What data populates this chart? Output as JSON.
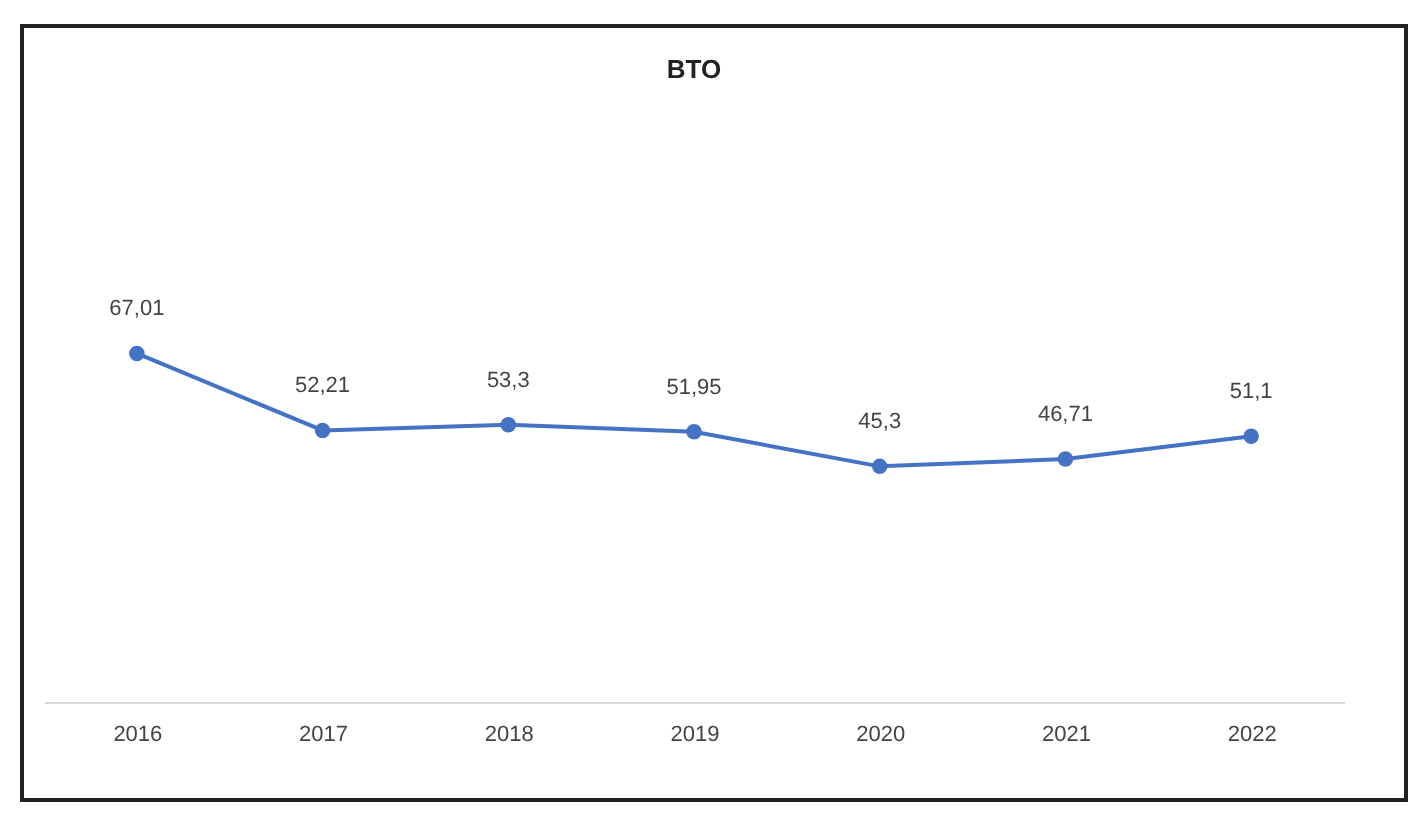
{
  "chart_data": {
    "type": "line",
    "title": "BTO",
    "categories": [
      "2016",
      "2017",
      "2018",
      "2019",
      "2020",
      "2021",
      "2022"
    ],
    "series": [
      {
        "color": "#4472c4",
        "values": [
          67.01,
          52.21,
          53.3,
          51.95,
          45.3,
          46.71,
          51.1
        ],
        "value_labels": [
          "67,01",
          "52,21",
          "53,3",
          "51,95",
          "45,3",
          "46,71",
          "51,1"
        ]
      }
    ],
    "marker": "circle",
    "line_style": "solid",
    "grid": false,
    "tick_labels": "x"
  }
}
